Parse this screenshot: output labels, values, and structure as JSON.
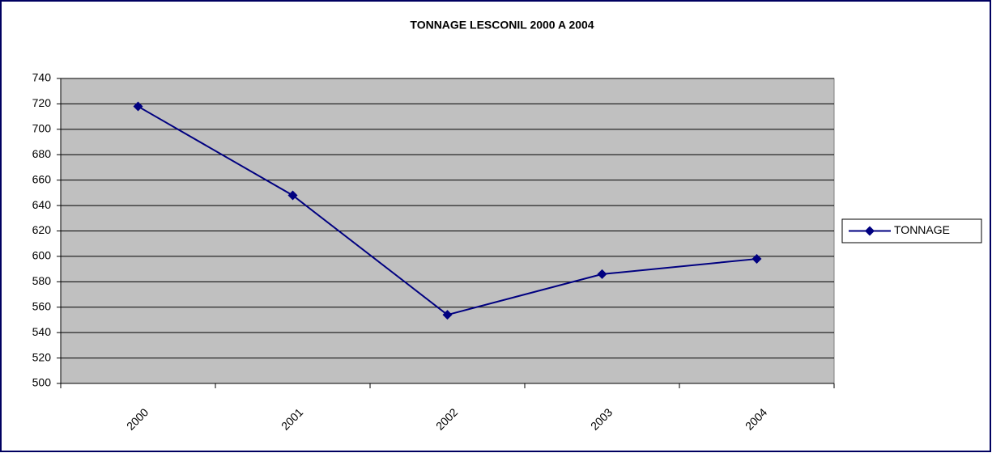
{
  "chart_data": {
    "type": "line",
    "title": "TONNAGE LESCONIL 2000 A 2004",
    "categories": [
      "2000",
      "2001",
      "2002",
      "2003",
      "2004"
    ],
    "series": [
      {
        "name": "TONNAGE",
        "color": "#000080",
        "values": [
          718,
          648,
          554,
          586,
          598
        ]
      }
    ],
    "ylim": [
      500,
      740
    ],
    "yticks": [
      500,
      520,
      540,
      560,
      580,
      600,
      620,
      640,
      660,
      680,
      700,
      720,
      740
    ],
    "grid": true,
    "legend": "right"
  }
}
